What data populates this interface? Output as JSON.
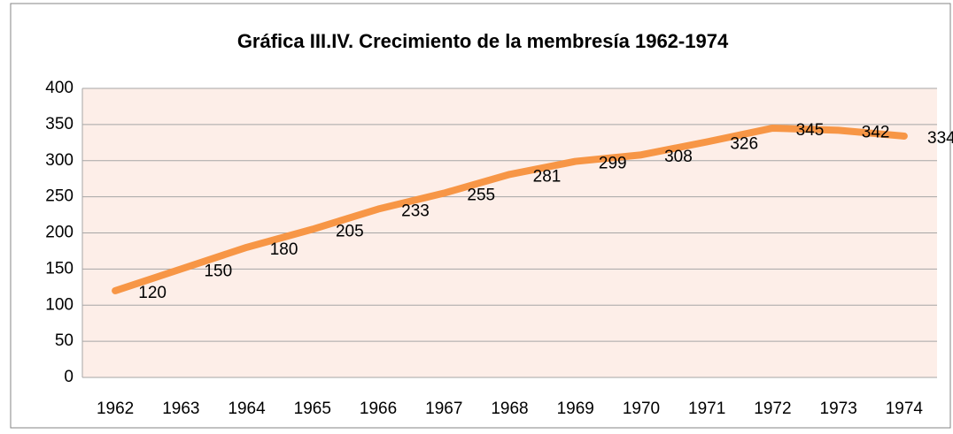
{
  "chart_data": {
    "type": "line",
    "title": "Gráfica III.IV. Crecimiento de la membresía 1962-1974",
    "categories": [
      "1962",
      "1963",
      "1964",
      "1965",
      "1966",
      "1967",
      "1968",
      "1969",
      "1970",
      "1971",
      "1972",
      "1973",
      "1974"
    ],
    "values": [
      120,
      150,
      180,
      205,
      233,
      255,
      281,
      299,
      308,
      326,
      345,
      342,
      334
    ],
    "color": "#f79646",
    "ylim": [
      0,
      400
    ],
    "yticks": [
      0,
      50,
      100,
      150,
      200,
      250,
      300,
      350,
      400
    ],
    "grid": true,
    "data_labels": true
  }
}
